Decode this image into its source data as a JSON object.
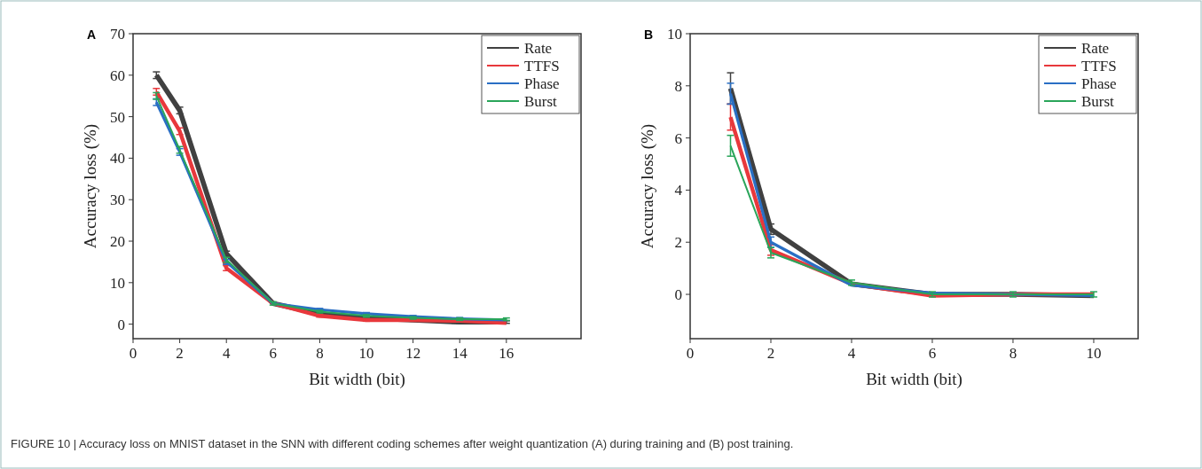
{
  "chart_data": [
    {
      "type": "line",
      "title": "A",
      "xlabel": "Bit width (bit)",
      "ylabel": "Accuracy loss (%)",
      "x": [
        1,
        2,
        4,
        6,
        8,
        10,
        12,
        14,
        16
      ],
      "xlim": [
        0,
        19.2
      ],
      "xticks": [
        0,
        2,
        4,
        6,
        8,
        10,
        12,
        14,
        16
      ],
      "ylim": [
        -3.5,
        70
      ],
      "yticks": [
        0,
        10,
        20,
        30,
        40,
        50,
        60,
        70
      ],
      "legend": "top right",
      "grid": false,
      "marker": "none",
      "line_style": "solid",
      "series": [
        {
          "name": "Rate",
          "color": "#404040",
          "values": [
            60,
            51.5,
            17,
            5,
            2.5,
            1.5,
            1,
            0.5,
            0.5
          ],
          "errors": [
            0.8,
            0.8,
            0.6,
            null,
            0.3,
            0.3,
            0.3,
            0.3,
            0.3
          ]
        },
        {
          "name": "TTFS",
          "color": "#e8383c",
          "values": [
            56,
            46.5,
            13.5,
            5,
            2,
            1,
            1,
            0.8,
            0.3
          ],
          "errors": [
            0.8,
            0.8,
            0.6,
            null,
            0.3,
            0.3,
            0.3,
            0.3,
            null
          ]
        },
        {
          "name": "Phase",
          "color": "#2a6fc4",
          "values": [
            53.5,
            41.5,
            15,
            5,
            3.5,
            2.5,
            1.8,
            1.3,
            1
          ],
          "errors": [
            0.8,
            0.8,
            0.6,
            null,
            0.3,
            0.3,
            0.3,
            0.3,
            null
          ]
        },
        {
          "name": "Burst",
          "color": "#2aa55a",
          "values": [
            55,
            42,
            15.5,
            5,
            3,
            2,
            1.5,
            1.2,
            1.2
          ],
          "errors": [
            0.8,
            0.8,
            0.6,
            0.4,
            0.3,
            0.3,
            0.3,
            0.3,
            0.3
          ]
        }
      ]
    },
    {
      "type": "line",
      "title": "B",
      "xlabel": "Bit width (bit)",
      "ylabel": "Accuracy loss (%)",
      "x": [
        1,
        2,
        4,
        6,
        8,
        10
      ],
      "xlim": [
        0,
        11.1
      ],
      "xticks": [
        0,
        2,
        4,
        6,
        8,
        10
      ],
      "ylim": [
        -1.7,
        10
      ],
      "yticks": [
        0,
        2,
        4,
        6,
        8,
        10
      ],
      "legend": "top right",
      "grid": false,
      "marker": "none",
      "line_style": "solid",
      "annotations": [
        "FIGURE 10 | Accuracy loss on MNIST dataset in the SNN with different coding schemes after weight quantization (A) during training and (B) post training."
      ],
      "series": [
        {
          "name": "Rate",
          "color": "#404040",
          "values": [
            7.9,
            2.5,
            0.4,
            0,
            0,
            -0.05
          ],
          "errors": [
            0.6,
            0.2,
            null,
            null,
            null,
            null
          ]
        },
        {
          "name": "TTFS",
          "color": "#e8383c",
          "values": [
            6.8,
            1.7,
            0.4,
            -0.05,
            0,
            0
          ],
          "errors": [
            0.5,
            0.2,
            null,
            null,
            null,
            null
          ]
        },
        {
          "name": "Phase",
          "color": "#2a6fc4",
          "values": [
            7.7,
            2.0,
            0.35,
            0.05,
            0,
            -0.05
          ],
          "errors": [
            0.4,
            0.2,
            null,
            null,
            null,
            null
          ]
        },
        {
          "name": "Burst",
          "color": "#2aa55a",
          "values": [
            5.7,
            1.6,
            0.45,
            0,
            0,
            0
          ],
          "errors": [
            0.4,
            0.2,
            0.1,
            0.1,
            0.1,
            0.1
          ]
        }
      ]
    }
  ]
}
